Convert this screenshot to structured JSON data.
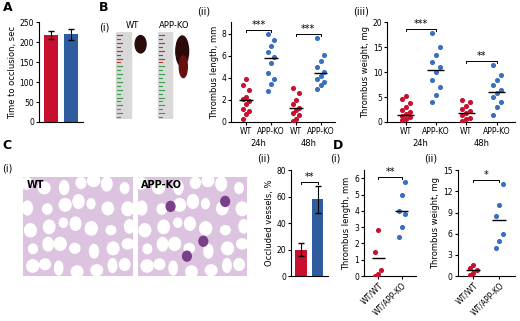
{
  "chart_data": [
    {
      "type": "bar",
      "panel": "A",
      "ylabel": "Time to occlusion, sec",
      "categories": [
        null,
        null
      ],
      "values": [
        218,
        220
      ],
      "errors": [
        10,
        14
      ],
      "colors": [
        "#c8102e",
        "#2e5c9e"
      ],
      "ylim": [
        0,
        250
      ],
      "yticks": [
        0,
        50,
        100,
        150,
        200,
        250
      ],
      "tick_labels": "y"
    },
    {
      "type": "scatter",
      "sub_label": "(ii)",
      "ylabel": "Thrombus length, mm",
      "categories": [
        "WT",
        "APP-KO",
        "WT",
        "APP-KO"
      ],
      "groups": [
        "24h",
        "48h"
      ],
      "values": [
        [
          0.3,
          0.7,
          1.0,
          1.2,
          1.6,
          1.9,
          2.1,
          2.3,
          2.9,
          3.3,
          3.9
        ],
        [
          2.8,
          3.4,
          3.9,
          4.4,
          5.3,
          5.9,
          6.3,
          6.9,
          7.4,
          8.0
        ],
        [
          0.1,
          0.3,
          0.6,
          0.8,
          1.1,
          1.3,
          1.6,
          2.0,
          2.6,
          3.1
        ],
        [
          3.0,
          3.3,
          3.6,
          3.9,
          4.2,
          4.5,
          5.0,
          5.5,
          6.1,
          7.6
        ]
      ],
      "medians": [
        2.0,
        5.8,
        1.3,
        4.4
      ],
      "colors": [
        "#c8102e",
        "#3a6fc0",
        "#c8102e",
        "#3a6fc0"
      ],
      "ylim": [
        0,
        9
      ],
      "yticks": [
        0,
        2,
        4,
        6,
        8
      ],
      "significance": [
        {
          "text": "***",
          "between": [
            0,
            1
          ]
        },
        {
          "text": "***",
          "between": [
            2,
            3
          ]
        }
      ]
    },
    {
      "type": "scatter",
      "sub_label": "(iii)",
      "ylabel": "Thrombus weight, mg",
      "categories": [
        "WT",
        "APP-KO",
        "WT",
        "APP-KO"
      ],
      "groups": [
        "24h",
        "48h"
      ],
      "values": [
        [
          0.3,
          0.6,
          1.0,
          1.3,
          1.6,
          2.0,
          2.5,
          3.0,
          3.8,
          4.7,
          5.3
        ],
        [
          4.0,
          5.5,
          7.0,
          8.5,
          10.0,
          11.0,
          12.0,
          13.5,
          15.0,
          17.8
        ],
        [
          0.2,
          0.5,
          0.9,
          1.4,
          1.8,
          2.2,
          2.6,
          3.2,
          4.0,
          4.5
        ],
        [
          1.5,
          3.0,
          4.0,
          5.0,
          5.8,
          6.5,
          7.5,
          8.5,
          9.5,
          11.5
        ]
      ],
      "medians": [
        1.5,
        10.5,
        1.8,
        6.0
      ],
      "colors": [
        "#c8102e",
        "#3a6fc0",
        "#c8102e",
        "#3a6fc0"
      ],
      "ylim": [
        0,
        20
      ],
      "yticks": [
        0,
        5,
        10,
        15,
        20
      ],
      "significance": [
        {
          "text": "***",
          "between": [
            0,
            1
          ]
        },
        {
          "text": "**",
          "between": [
            2,
            3
          ]
        }
      ]
    },
    {
      "type": "bar",
      "sub_label": "(ii)",
      "ylabel": "Occluded vessels, %",
      "categories": [
        null,
        null
      ],
      "values": [
        20,
        58
      ],
      "errors": [
        5,
        10
      ],
      "colors": [
        "#c8102e",
        "#2e5c9e"
      ],
      "ylim": [
        0,
        80
      ],
      "yticks": [
        0,
        20,
        40,
        60,
        80
      ],
      "tick_labels": "y",
      "significance": [
        {
          "text": "**",
          "between": [
            0,
            1
          ]
        }
      ]
    },
    {
      "type": "scatter",
      "panel": "D",
      "sub_label": "(i)",
      "ylabel": "Thrombus length, mm",
      "categories": [
        "WT/WT",
        "WT/APP-KO"
      ],
      "values": [
        [
          0.0,
          0.1,
          0.4,
          1.5,
          2.8
        ],
        [
          2.4,
          3.0,
          3.8,
          4.0,
          5.0,
          5.8
        ]
      ],
      "medians": [
        1.1,
        4.0
      ],
      "colors": [
        "#c8102e",
        "#3a6fc0"
      ],
      "ylim": [
        0,
        6.5
      ],
      "yticks": [
        0,
        1,
        2,
        3,
        4,
        5,
        6
      ],
      "significance": [
        {
          "text": "**",
          "between": [
            0,
            1
          ]
        }
      ]
    },
    {
      "type": "scatter",
      "sub_label": "(ii)",
      "ylabel": "Thrombus weight, mg",
      "categories": [
        "WT/WT",
        "WT/APP-KO"
      ],
      "values": [
        [
          0.1,
          0.4,
          0.8,
          1.2,
          1.5
        ],
        [
          4.0,
          5.0,
          6.0,
          8.5,
          10.0,
          13.0
        ]
      ],
      "medians": [
        0.8,
        8.0
      ],
      "colors": [
        "#c8102e",
        "#3a6fc0"
      ],
      "ylim": [
        0,
        15
      ],
      "yticks": [
        0,
        3,
        6,
        9,
        12,
        15
      ],
      "significance": [
        {
          "text": "*",
          "between": [
            0,
            1
          ]
        }
      ]
    }
  ],
  "images": [
    {
      "panel": "B",
      "sub_label": "(i)",
      "labels": [
        "WT",
        "APP-KO"
      ]
    },
    {
      "panel": "C",
      "sub_label": "(i)",
      "labels": [
        "WT",
        "APP-KO"
      ]
    }
  ]
}
